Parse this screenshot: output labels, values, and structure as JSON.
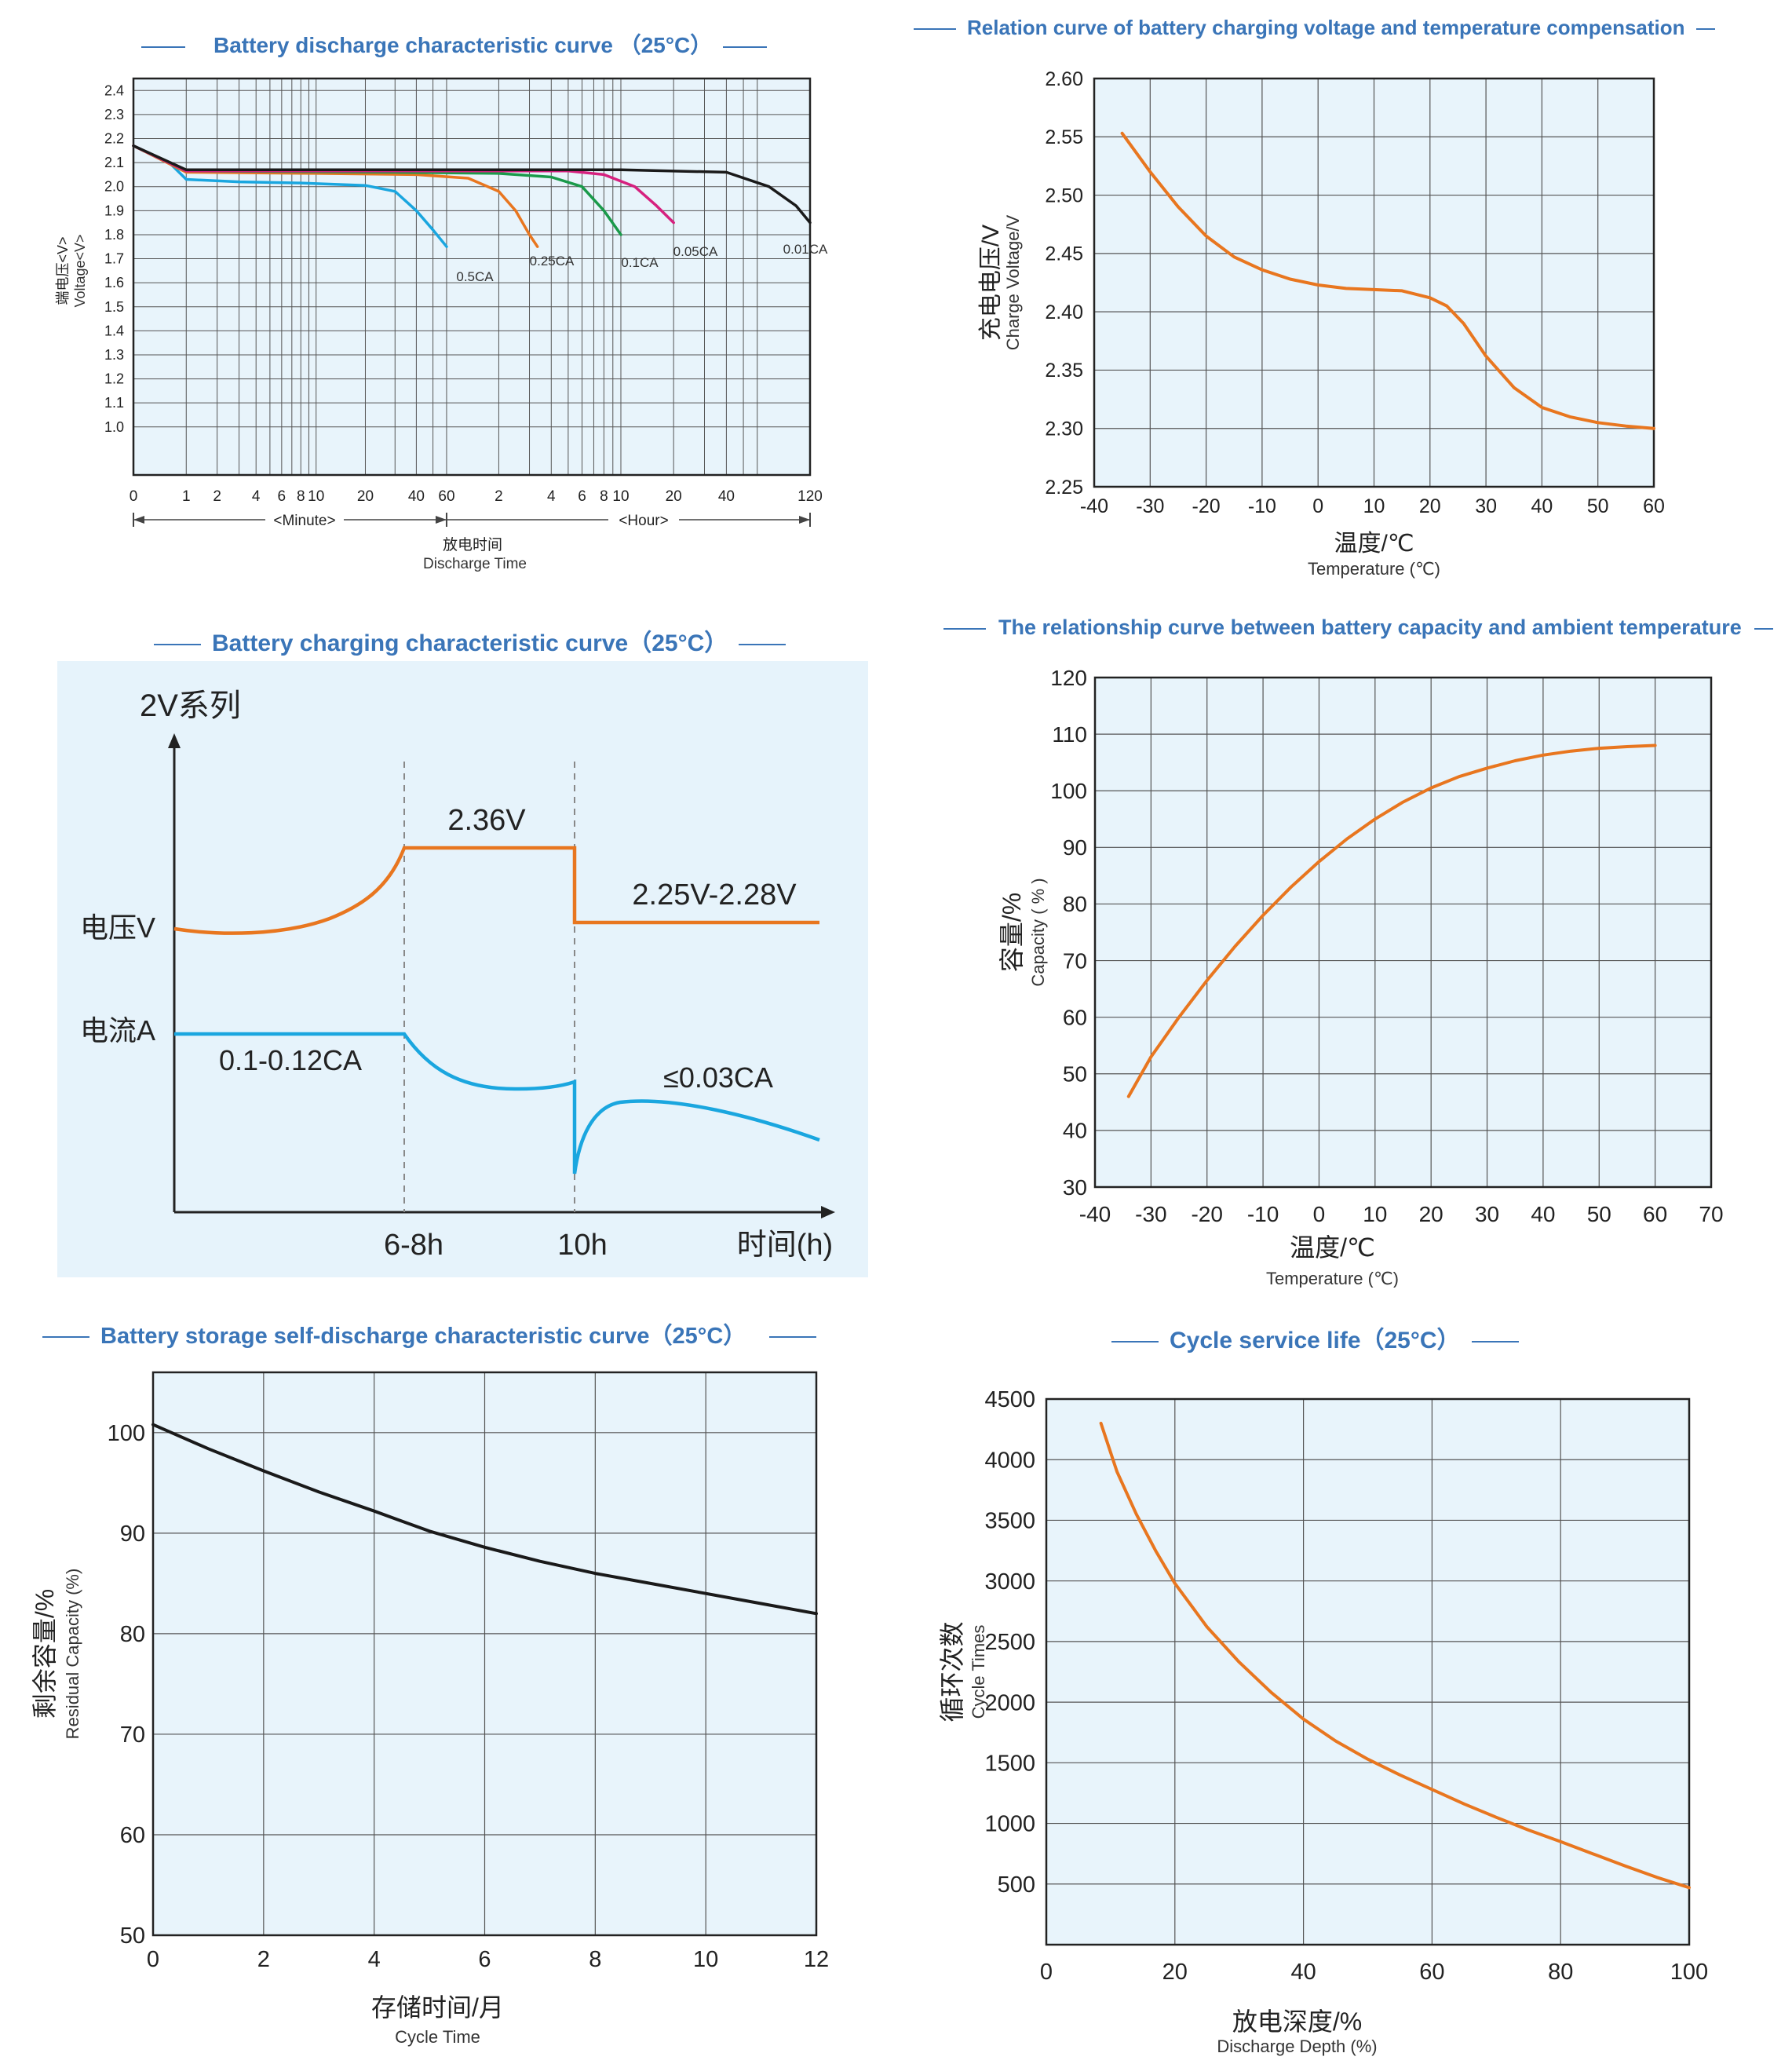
{
  "colors": {
    "plot_bg": "#e8f4fb",
    "grid": "#555555",
    "orange": "#e8761f",
    "blue": "#1aa6df",
    "green": "#1a9a4a",
    "magenta": "#d6217f",
    "black": "#1a1a1a",
    "title": "#3a75b8",
    "charge_bg": "#e6f3fb"
  },
  "chart_data": [
    {
      "id": "discharge",
      "type": "line",
      "title": "Battery discharge characteristic curve （25°C）",
      "ylabel_cn": "端电压<V>",
      "ylabel_en": "Voltage<V>",
      "xlabel_cn": "放电时间",
      "xlabel_en": "Discharge Time",
      "x_unit_minute": "<Minute>",
      "x_unit_hour": "<Hour>",
      "x_ticks": [
        {
          "label": "0",
          "min": 0
        },
        {
          "label": "1",
          "min": 1
        },
        {
          "label": "2",
          "min": 2
        },
        {
          "label": "4",
          "min": 4
        },
        {
          "label": "6",
          "min": 6
        },
        {
          "label": "8",
          "min": 8
        },
        {
          "label": "10",
          "min": 10
        },
        {
          "label": "20",
          "min": 20
        },
        {
          "label": "40",
          "min": 40
        },
        {
          "label": "60",
          "min": 60
        },
        {
          "label": "2",
          "min": 120
        },
        {
          "label": "4",
          "min": 240
        },
        {
          "label": "6",
          "min": 360
        },
        {
          "label": "8",
          "min": 480
        },
        {
          "label": "10",
          "min": 600
        },
        {
          "label": "20",
          "min": 1200
        },
        {
          "label": "40",
          "min": 2400
        },
        {
          "label": "120",
          "min": 7200
        }
      ],
      "x_grid_minutes": [
        1,
        2,
        3,
        4,
        5,
        6,
        7,
        8,
        9,
        10,
        20,
        30,
        40,
        50,
        60,
        120,
        180,
        240,
        300,
        360,
        420,
        480,
        540,
        600,
        1200,
        1800,
        2400,
        3000,
        3600,
        7200
      ],
      "yticks": [
        1.0,
        1.1,
        1.2,
        1.3,
        1.4,
        1.5,
        1.6,
        1.7,
        1.8,
        1.9,
        2.0,
        2.1,
        2.2,
        2.3,
        2.4
      ],
      "ylim": [
        0.8,
        2.45
      ],
      "series": [
        {
          "name": "0.5CA",
          "color": "blue",
          "points": [
            [
              0,
              2.17
            ],
            [
              0.6,
              2.1
            ],
            [
              1,
              2.03
            ],
            [
              3,
              2.02
            ],
            [
              8,
              2.015
            ],
            [
              20,
              2.005
            ],
            [
              30,
              1.98
            ],
            [
              40,
              1.9
            ],
            [
              50,
              1.82
            ],
            [
              60,
              1.75
            ]
          ]
        },
        {
          "name": "0.25CA",
          "color": "orange",
          "points": [
            [
              0,
              2.17
            ],
            [
              1,
              2.06
            ],
            [
              10,
              2.055
            ],
            [
              40,
              2.05
            ],
            [
              80,
              2.035
            ],
            [
              120,
              1.98
            ],
            [
              150,
              1.9
            ],
            [
              180,
              1.8
            ],
            [
              200,
              1.75
            ]
          ]
        },
        {
          "name": "0.1CA",
          "color": "green",
          "points": [
            [
              0,
              2.17
            ],
            [
              1,
              2.065
            ],
            [
              30,
              2.06
            ],
            [
              120,
              2.055
            ],
            [
              240,
              2.04
            ],
            [
              360,
              2.0
            ],
            [
              480,
              1.9
            ],
            [
              600,
              1.8
            ]
          ]
        },
        {
          "name": "0.05CA",
          "color": "magenta",
          "points": [
            [
              0,
              2.17
            ],
            [
              1,
              2.065
            ],
            [
              60,
              2.065
            ],
            [
              300,
              2.065
            ],
            [
              480,
              2.05
            ],
            [
              720,
              2.0
            ],
            [
              960,
              1.92
            ],
            [
              1200,
              1.85
            ]
          ]
        },
        {
          "name": "0.01CA",
          "color": "black",
          "points": [
            [
              0,
              2.17
            ],
            [
              1,
              2.07
            ],
            [
              60,
              2.07
            ],
            [
              600,
              2.07
            ],
            [
              2400,
              2.06
            ],
            [
              4200,
              2.0
            ],
            [
              6000,
              1.92
            ],
            [
              7200,
              1.85
            ]
          ]
        }
      ]
    },
    {
      "id": "temp_comp",
      "type": "line",
      "title": "Relation curve of battery charging voltage and temperature compensation",
      "ylabel_cn": "充电电压/V",
      "ylabel_en": "Charge Voltage/V",
      "xlabel_cn": "温度/℃",
      "xlabel_en": "Temperature (℃)",
      "xlim": [
        -40,
        60
      ],
      "ylim": [
        2.25,
        2.6
      ],
      "xticks": [
        -40,
        -30,
        -20,
        -10,
        0,
        10,
        20,
        30,
        40,
        50,
        60
      ],
      "yticks": [
        "2.25",
        "2.30",
        "2.35",
        "2.40",
        "2.45",
        "2.50",
        "2.55",
        "2.60"
      ],
      "series": [
        {
          "name": "charge voltage",
          "color": "orange",
          "points": [
            [
              -35,
              2.553
            ],
            [
              -30,
              2.52
            ],
            [
              -25,
              2.49
            ],
            [
              -20,
              2.465
            ],
            [
              -15,
              2.447
            ],
            [
              -10,
              2.436
            ],
            [
              -5,
              2.428
            ],
            [
              0,
              2.423
            ],
            [
              5,
              2.42
            ],
            [
              10,
              2.419
            ],
            [
              15,
              2.418
            ],
            [
              20,
              2.412
            ],
            [
              23,
              2.405
            ],
            [
              26,
              2.39
            ],
            [
              30,
              2.362
            ],
            [
              35,
              2.335
            ],
            [
              40,
              2.318
            ],
            [
              45,
              2.31
            ],
            [
              50,
              2.305
            ],
            [
              55,
              2.302
            ],
            [
              60,
              2.3
            ]
          ]
        }
      ]
    },
    {
      "id": "charging",
      "type": "line",
      "title": "Battery charging characteristic curve（25°C）",
      "series_label": "2V系列",
      "voltage_label": "电压V",
      "current_label": "电流A",
      "ann_const_v": "2.36V",
      "ann_float_v": "2.25V-2.28V",
      "ann_init_i": "0.1-0.12CA",
      "ann_float_i": "≤0.03CA",
      "xtick_1": "6-8h",
      "xtick_2": "10h",
      "xlabel": "时间(h)"
    },
    {
      "id": "capacity_temp",
      "type": "line",
      "title": "The relationship curve between battery capacity and ambient temperature",
      "ylabel_cn": "容量/%",
      "ylabel_en": "Capacity ( % )",
      "xlabel_cn": "温度/℃",
      "xlabel_en": "Temperature (℃)",
      "xlim": [
        -40,
        70
      ],
      "ylim": [
        30,
        120
      ],
      "xticks": [
        -40,
        -30,
        -20,
        -10,
        0,
        10,
        20,
        30,
        40,
        50,
        60,
        70
      ],
      "yticks": [
        30,
        40,
        50,
        60,
        70,
        80,
        90,
        100,
        110,
        120
      ],
      "series": [
        {
          "name": "capacity",
          "color": "orange",
          "points": [
            [
              -34,
              46
            ],
            [
              -30,
              53
            ],
            [
              -25,
              60
            ],
            [
              -20,
              66.5
            ],
            [
              -15,
              72.5
            ],
            [
              -10,
              78
            ],
            [
              -5,
              83
            ],
            [
              0,
              87.5
            ],
            [
              5,
              91.5
            ],
            [
              10,
              95
            ],
            [
              15,
              98
            ],
            [
              20,
              100.5
            ],
            [
              25,
              102.5
            ],
            [
              30,
              104
            ],
            [
              35,
              105.3
            ],
            [
              40,
              106.3
            ],
            [
              45,
              107
            ],
            [
              50,
              107.5
            ],
            [
              55,
              107.8
            ],
            [
              60,
              108
            ]
          ]
        }
      ]
    },
    {
      "id": "self_discharge",
      "type": "line",
      "title": "Battery storage self-discharge characteristic curve（25°C）",
      "ylabel_cn": "剩余容量/%",
      "ylabel_en": "Residual Capacity (%)",
      "xlabel_cn": "存储时间/月",
      "xlabel_en": "Cycle Time",
      "xlim": [
        0,
        12
      ],
      "ylim": [
        50,
        106
      ],
      "xticks": [
        0,
        2,
        4,
        6,
        8,
        10,
        12
      ],
      "yticks": [
        50,
        60,
        70,
        80,
        90,
        100
      ],
      "series": [
        {
          "name": "residual capacity",
          "color": "black",
          "points": [
            [
              0,
              100.8
            ],
            [
              1,
              98.4
            ],
            [
              2,
              96.2
            ],
            [
              3,
              94.1
            ],
            [
              4,
              92.2
            ],
            [
              5,
              90.2
            ],
            [
              6,
              88.6
            ],
            [
              7,
              87.2
            ],
            [
              8,
              86.0
            ],
            [
              9,
              85.0
            ],
            [
              10,
              84.0
            ],
            [
              11,
              83.0
            ],
            [
              12,
              82.0
            ]
          ]
        }
      ]
    },
    {
      "id": "cycle_life",
      "type": "line",
      "title": "Cycle service life（25°C）",
      "ylabel_cn": "循环次数",
      "ylabel_en": "Cycle Times",
      "xlabel_cn": "放电深度/%",
      "xlabel_en": "Discharge Depth (%)",
      "xlim": [
        0,
        100
      ],
      "ylim": [
        0,
        4500
      ],
      "xticks": [
        0,
        20,
        40,
        60,
        80,
        100
      ],
      "yticks": [
        500,
        1000,
        1500,
        2000,
        2500,
        3000,
        3500,
        4000,
        4500
      ],
      "series": [
        {
          "name": "cycle times",
          "color": "orange",
          "points": [
            [
              8.5,
              4300
            ],
            [
              11,
              3900
            ],
            [
              14,
              3550
            ],
            [
              17,
              3250
            ],
            [
              20,
              2980
            ],
            [
              25,
              2620
            ],
            [
              30,
              2330
            ],
            [
              35,
              2080
            ],
            [
              40,
              1860
            ],
            [
              45,
              1680
            ],
            [
              50,
              1530
            ],
            [
              55,
              1400
            ],
            [
              60,
              1280
            ],
            [
              65,
              1160
            ],
            [
              70,
              1050
            ],
            [
              75,
              945
            ],
            [
              80,
              850
            ],
            [
              85,
              750
            ],
            [
              90,
              650
            ],
            [
              95,
              555
            ],
            [
              100,
              470
            ]
          ]
        }
      ]
    }
  ]
}
